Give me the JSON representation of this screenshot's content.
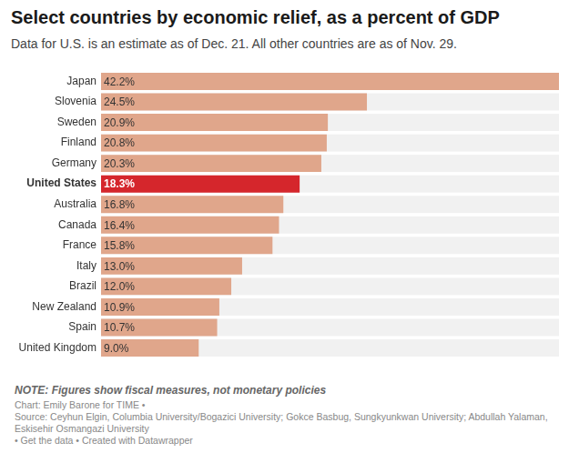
{
  "chart_data": {
    "type": "bar",
    "orientation": "horizontal",
    "title": "Select countries by economic relief, as a percent of GDP",
    "subtitle": "Data for U.S. is an estimate as of Dec. 21. All other countries are as of Nov. 29.",
    "categories": [
      "Japan",
      "Slovenia",
      "Sweden",
      "Finland",
      "Germany",
      "United States",
      "Australia",
      "Canada",
      "France",
      "Italy",
      "Brazil",
      "New Zealand",
      "Spain",
      "United Kingdom"
    ],
    "values": [
      42.2,
      24.5,
      20.9,
      20.8,
      20.3,
      18.3,
      16.8,
      16.4,
      15.8,
      13.0,
      12.0,
      10.9,
      10.7,
      9.0
    ],
    "value_labels": [
      "42.2%",
      "24.5%",
      "20.9%",
      "20.8%",
      "20.3%",
      "18.3%",
      "16.8%",
      "16.4%",
      "15.8%",
      "13.0%",
      "12.0%",
      "10.9%",
      "10.7%",
      "9.0%"
    ],
    "colors": [
      "#e0a68b",
      "#e0a68b",
      "#e0a68b",
      "#e0a68b",
      "#e0a68b",
      "#d5262c",
      "#e0a68b",
      "#e0a68b",
      "#e0a68b",
      "#e0a68b",
      "#e0a68b",
      "#e0a68b",
      "#e0a68b",
      "#e0a68b"
    ],
    "xlim": [
      0,
      42.2
    ],
    "grid": false,
    "data_labels": true,
    "tick_labels": "y",
    "note": "NOTE: Figures show fiscal measures, not monetary policies",
    "footer": [
      "Chart: Emily Barone for TIME •",
      "Source: Ceyhun Elgin, Columbia University/Bogazici University; Gokce Basbug, Sungkyunkwan University; Abdullah Yalaman, Eskisehir Osmangazi University",
      "• Get the data • Created with Datawrapper"
    ]
  }
}
